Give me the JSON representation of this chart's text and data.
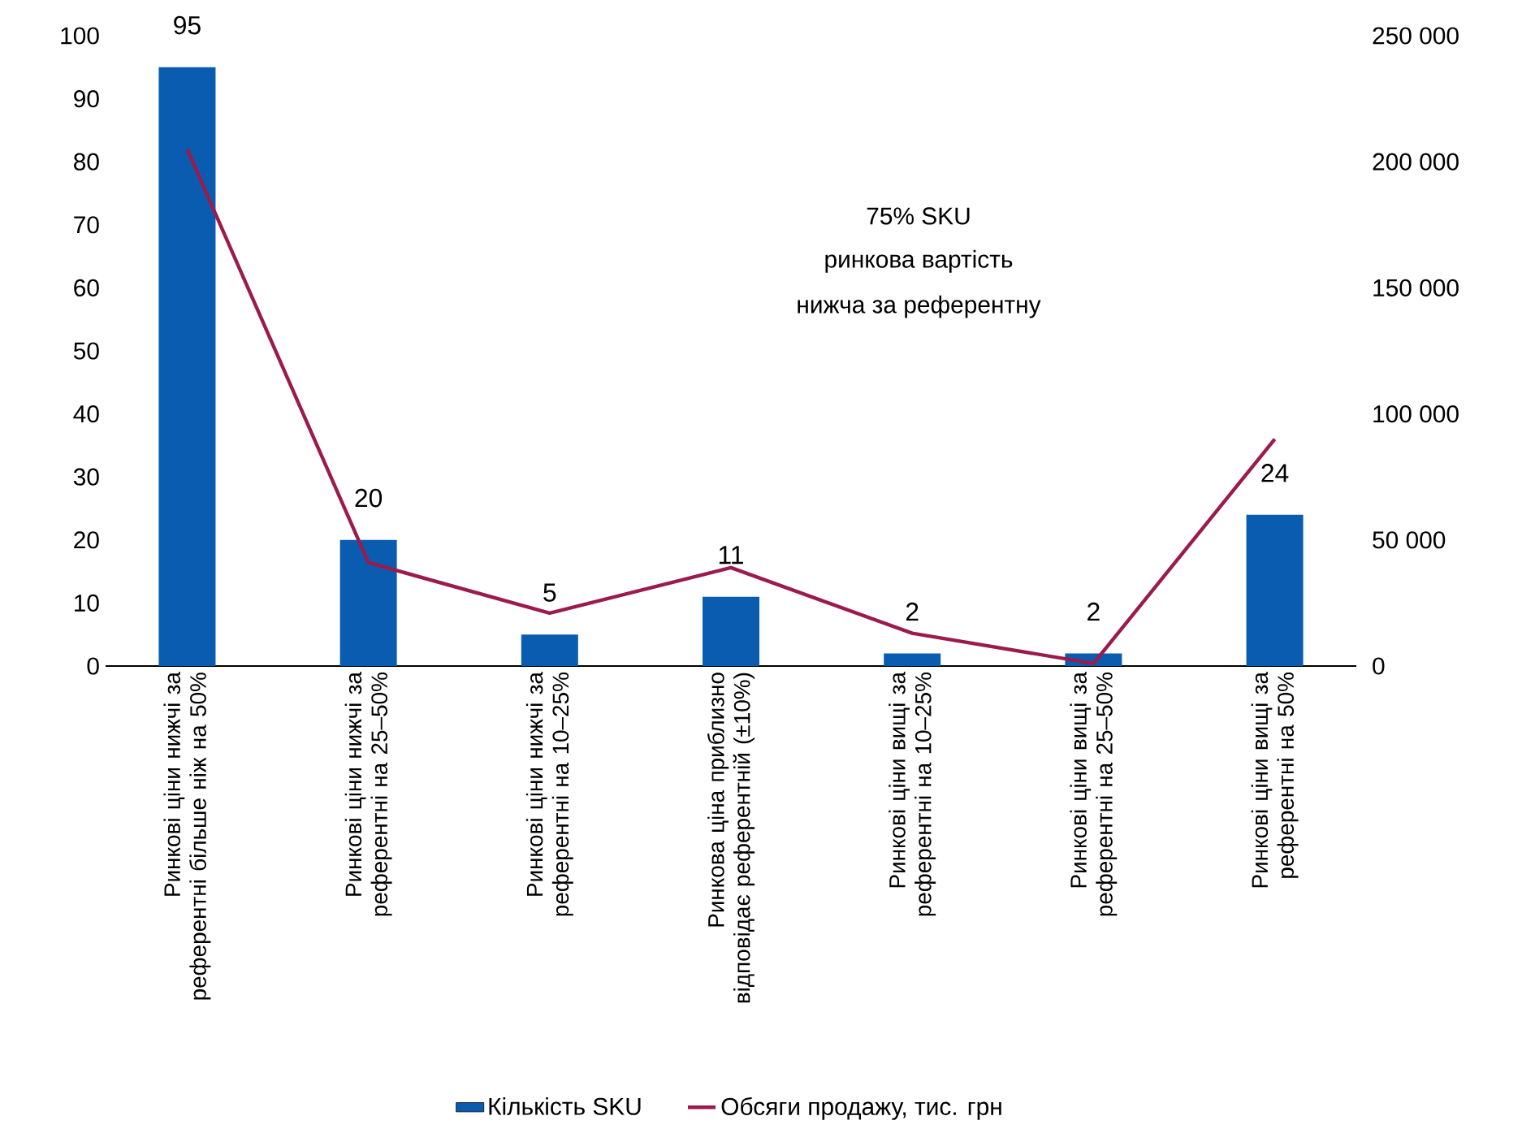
{
  "chart_data": {
    "type": "bar",
    "categories": [
      "Ринкові ціни нижчі за референтні більше ніж на 50%",
      "Ринкові ціни нижчі за референтні на 25–50%",
      "Ринкові ціни нижчі за референтні на 10–25%",
      "Ринкова ціна приблизно відповідає референтній (±10%)",
      "Ринкові ціни вищі за референтні на 10–25%",
      "Ринкові ціни вищі за референтні на 25–50%",
      "Ринкові ціни вищі за референтні на 50%"
    ],
    "series": [
      {
        "name": "Кількість SKU",
        "color": "#0a5cb0",
        "values": [
          95,
          20,
          5,
          11,
          2,
          2,
          24
        ],
        "value_labels": [
          "95",
          "20",
          "5",
          "11",
          "2",
          "2",
          "24"
        ]
      },
      {
        "name": "Обсяги продажу, тис. грн",
        "type": "line",
        "axis": "y2",
        "color": "#9b1b4c",
        "values": [
          205000,
          41000,
          21000,
          39000,
          13000,
          1000,
          90000
        ]
      }
    ],
    "ylim": [
      0,
      100
    ],
    "yticks": [
      0,
      10,
      20,
      30,
      40,
      50,
      60,
      70,
      80,
      90,
      100
    ],
    "y2lim": [
      0,
      250000
    ],
    "y2ticks": [
      {
        "value": 0,
        "label": "0"
      },
      {
        "value": 50000,
        "label": "50 000"
      },
      {
        "value": 100000,
        "label": "100 000"
      },
      {
        "value": 150000,
        "label": "150 000"
      },
      {
        "value": 200000,
        "label": "200 000"
      },
      {
        "value": 250000,
        "label": "250 000"
      }
    ],
    "annotations": [
      "75% SKU",
      "ринкова вартість",
      "нижча за референтну"
    ],
    "legend": "bottom"
  }
}
